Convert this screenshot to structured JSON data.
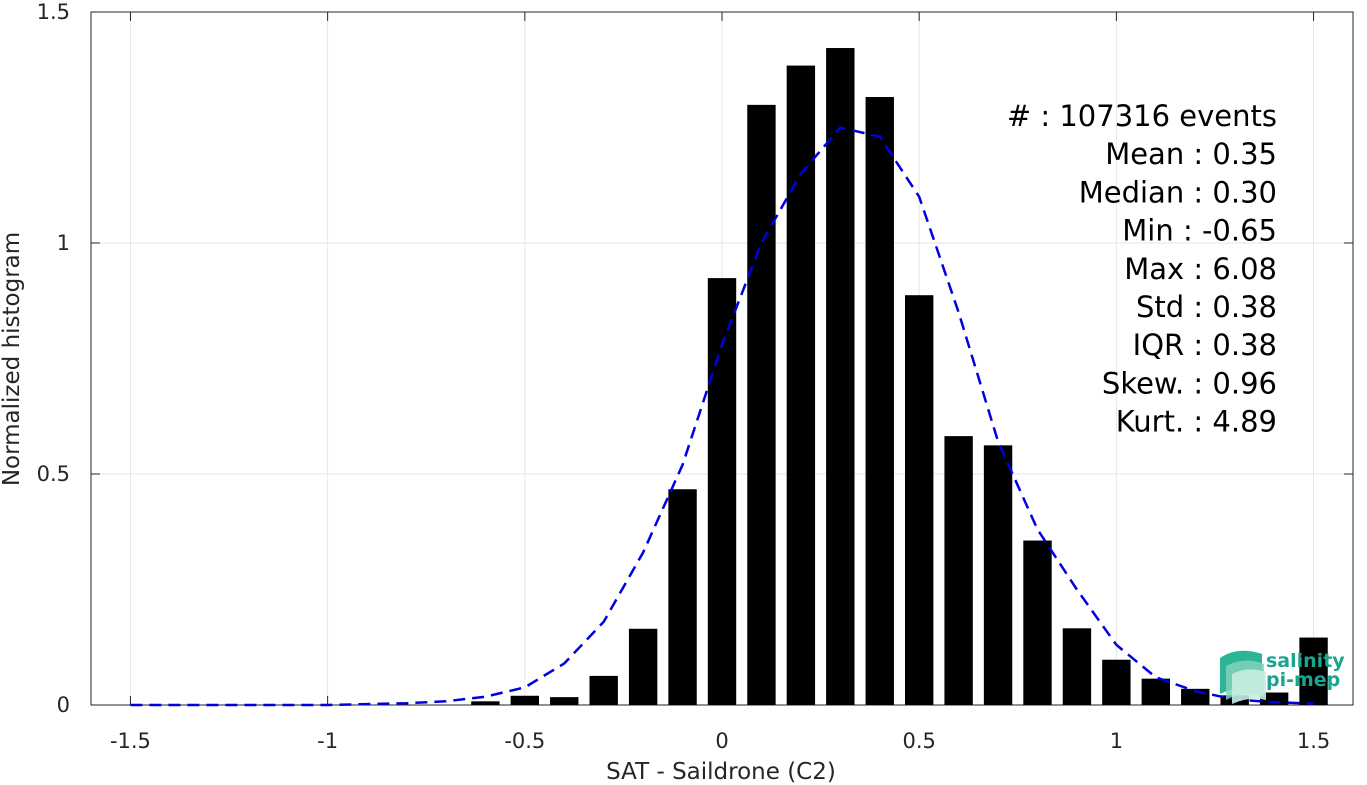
{
  "chart_data": {
    "type": "bar",
    "xlabel": "SAT - Saildrone (C2)",
    "ylabel": "Normalized histogram",
    "xlim": [
      -1.5,
      1.5
    ],
    "ylim": [
      0,
      1.5
    ],
    "xticks": [
      "-1.5",
      "-1",
      "-0.5",
      "0",
      "0.5",
      "1",
      "1.5"
    ],
    "yticks": [
      "0",
      "0.5",
      "1",
      "1.5"
    ],
    "grid": true,
    "bar_color": "#000000",
    "fit_color": "#0000e0",
    "bars": {
      "x": [
        -0.6,
        -0.5,
        -0.4,
        -0.3,
        -0.2,
        -0.1,
        0.0,
        0.1,
        0.2,
        0.3,
        0.4,
        0.5,
        0.6,
        0.7,
        0.8,
        0.9,
        1.0,
        1.1,
        1.2,
        1.3,
        1.4,
        1.5
      ],
      "values": [
        0.008,
        0.02,
        0.017,
        0.063,
        0.165,
        0.467,
        0.924,
        1.299,
        1.384,
        1.422,
        1.316,
        0.887,
        0.582,
        0.562,
        0.356,
        0.166,
        0.098,
        0.057,
        0.035,
        0.021,
        0.027,
        0.146
      ]
    },
    "fit": {
      "style": "dashed",
      "x": [
        -1.5,
        -1.4,
        -1.3,
        -1.2,
        -1.1,
        -1.0,
        -0.9,
        -0.8,
        -0.7,
        -0.6,
        -0.5,
        -0.4,
        -0.3,
        -0.2,
        -0.1,
        0.0,
        0.1,
        0.2,
        0.3,
        0.4,
        0.5,
        0.6,
        0.7,
        0.8,
        0.9,
        1.0,
        1.1,
        1.2,
        1.3,
        1.4,
        1.5
      ],
      "y": [
        0.0,
        0.0,
        0.0,
        0.0,
        0.0,
        0.0,
        0.002,
        0.004,
        0.008,
        0.018,
        0.038,
        0.09,
        0.18,
        0.33,
        0.52,
        0.78,
        1.0,
        1.15,
        1.25,
        1.23,
        1.1,
        0.85,
        0.57,
        0.38,
        0.25,
        0.13,
        0.06,
        0.03,
        0.012,
        0.006,
        0.003
      ]
    },
    "stats": [
      {
        "label": "#",
        "sep": ":",
        "value": "107316 events"
      },
      {
        "label": "Mean",
        "sep": ":",
        "value": "0.35"
      },
      {
        "label": "Median",
        "sep": ":",
        "value": "0.30"
      },
      {
        "label": "Min",
        "sep": ":",
        "value": "-0.65"
      },
      {
        "label": "Max",
        "sep": ":",
        "value": "6.08"
      },
      {
        "label": "Std",
        "sep": ":",
        "value": "0.38"
      },
      {
        "label": "IQR",
        "sep": ":",
        "value": "0.38"
      },
      {
        "label": "Skew.",
        "sep": ":",
        "value": "0.96"
      },
      {
        "label": "Kurt.",
        "sep": ":",
        "value": "4.89"
      }
    ]
  },
  "logo": {
    "line1": "salinity",
    "line2": "pi-mep",
    "color": "#1aa58f",
    "icon": "salinity-wave-logo-icon"
  }
}
